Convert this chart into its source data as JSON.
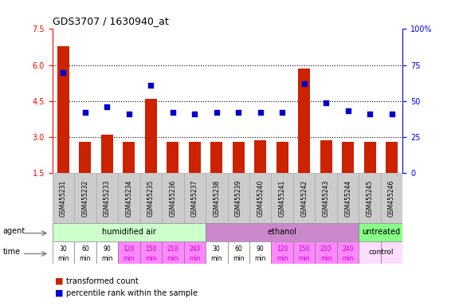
{
  "title": "GDS3707 / 1630940_at",
  "samples": [
    "GSM455231",
    "GSM455232",
    "GSM455233",
    "GSM455234",
    "GSM455235",
    "GSM455236",
    "GSM455237",
    "GSM455238",
    "GSM455239",
    "GSM455240",
    "GSM455241",
    "GSM455242",
    "GSM455243",
    "GSM455244",
    "GSM455245",
    "GSM455246"
  ],
  "bar_values": [
    6.8,
    2.8,
    3.1,
    2.8,
    4.6,
    2.8,
    2.8,
    2.8,
    2.8,
    2.85,
    2.8,
    5.85,
    2.85,
    2.8,
    2.8,
    2.8
  ],
  "percentile_values": [
    70,
    42,
    46,
    41,
    61,
    42,
    41,
    42,
    42,
    42,
    42,
    62,
    49,
    43,
    41,
    41
  ],
  "ylim_left": [
    1.5,
    7.5
  ],
  "ylim_right": [
    0,
    100
  ],
  "yticks_left": [
    1.5,
    3.0,
    4.5,
    6.0,
    7.5
  ],
  "yticks_right": [
    0,
    25,
    50,
    75,
    100
  ],
  "bar_color": "#cc2200",
  "dot_color": "#0000cc",
  "agent_groups": [
    {
      "label": "humidified air",
      "start": 0,
      "end": 7,
      "color": "#ccffcc"
    },
    {
      "label": "ethanol",
      "start": 7,
      "end": 14,
      "color": "#cc88cc"
    },
    {
      "label": "untreated",
      "start": 14,
      "end": 16,
      "color": "#88ff88"
    }
  ],
  "time_labels": [
    "30\nmin",
    "60\nmin",
    "90\nmin",
    "120\nmin",
    "150\nmin",
    "210\nmin",
    "240\nmin",
    "30\nmin",
    "60\nmin",
    "90\nmin",
    "120\nmin",
    "150\nmin",
    "210\nmin",
    "240\nmin",
    "control",
    ""
  ],
  "time_colors": [
    "#ffffff",
    "#ffffff",
    "#ffffff",
    "#ff88ff",
    "#ff88ff",
    "#ff88ff",
    "#ff88ff",
    "#ffffff",
    "#ffffff",
    "#ffffff",
    "#ff88ff",
    "#ff88ff",
    "#ff88ff",
    "#ff88ff",
    "#ffddff",
    "#ffddff"
  ],
  "time_label_colors": [
    "#000000",
    "#000000",
    "#000000",
    "#cc00cc",
    "#cc00cc",
    "#cc00cc",
    "#cc00cc",
    "#000000",
    "#000000",
    "#000000",
    "#cc00cc",
    "#cc00cc",
    "#cc00cc",
    "#cc00cc",
    "#000000",
    "#000000"
  ],
  "sample_bg_color": "#cccccc",
  "sample_border_color": "#aaaaaa",
  "legend_bar_label": "transformed count",
  "legend_dot_label": "percentile rank within the sample"
}
